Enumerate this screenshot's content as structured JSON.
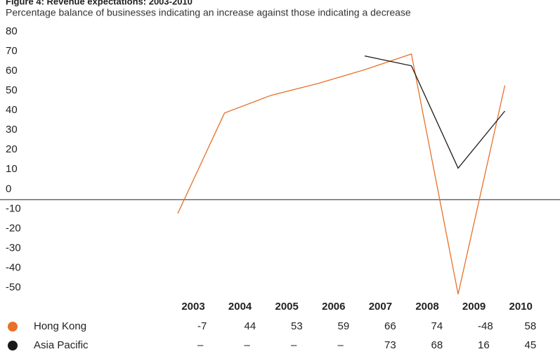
{
  "chart_data": {
    "type": "line",
    "title": "Figure 4: Revenue expectations: 2003-2010",
    "subtitle": "Percentage balance of businesses indicating an increase against those indicating a decrease",
    "categories": [
      "2003",
      "2004",
      "2005",
      "2006",
      "2007",
      "2008",
      "2009",
      "2010"
    ],
    "series": [
      {
        "name": "Hong Kong",
        "color": "#e8702a",
        "values": [
          -7,
          44,
          53,
          59,
          66,
          74,
          -48,
          58
        ]
      },
      {
        "name": "Asia Pacific",
        "color": "#1a1a1a",
        "values": [
          null,
          null,
          null,
          null,
          73,
          68,
          16,
          45
        ],
        "value_labels": [
          "–",
          "–",
          "–",
          "–",
          "73",
          "68",
          "16",
          "45"
        ]
      }
    ],
    "ylim": [
      -50,
      80
    ],
    "yticks": [
      80,
      70,
      60,
      50,
      40,
      30,
      20,
      10,
      0,
      -10,
      -20,
      -30,
      -40,
      -50
    ]
  }
}
